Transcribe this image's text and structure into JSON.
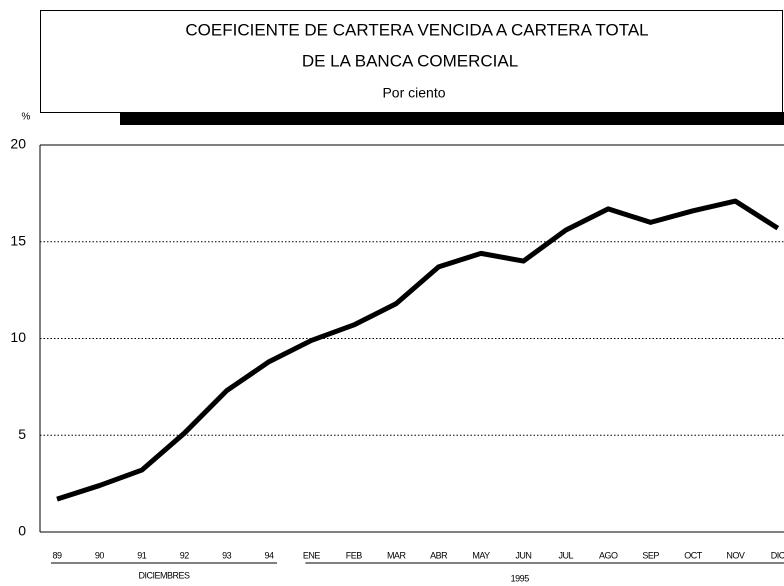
{
  "chart_data": {
    "type": "line",
    "title": [
      "COEFICIENTE DE CARTERA VENCIDA A CARTERA TOTAL",
      "DE LA BANCA COMERCIAL"
    ],
    "subtitle": "Por ciento",
    "y_label": "%",
    "categories": [
      "89",
      "90",
      "91",
      "92",
      "93",
      "94",
      "ENE",
      "FEB",
      "MAR",
      "ABR",
      "MAY",
      "JUN",
      "JUL",
      "AGO",
      "SEP",
      "OCT",
      "NOV",
      "DIC"
    ],
    "groups": [
      {
        "label": "DICIEMBRES",
        "categories": 6
      },
      {
        "label": "1995",
        "categories": 12
      }
    ],
    "series": [
      {
        "name": "Coeficiente",
        "color": "#000000",
        "values": [
          1.7,
          2.4,
          3.2,
          5.1,
          7.3,
          8.8,
          9.9,
          10.7,
          11.8,
          13.7,
          14.4,
          14.0,
          15.6,
          16.7,
          16.0,
          16.6,
          17.1,
          15.7
        ]
      }
    ],
    "ylim": [
      0,
      20
    ],
    "yticks": [
      0,
      5,
      10,
      15,
      20
    ],
    "grid": true
  }
}
